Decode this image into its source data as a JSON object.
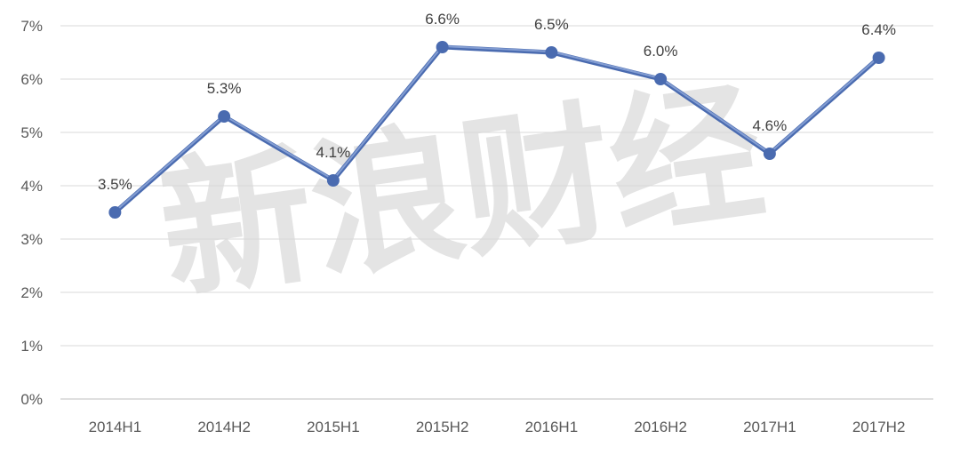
{
  "chart_data": {
    "type": "line",
    "title": "",
    "xlabel": "",
    "ylabel": "",
    "categories": [
      "2014H1",
      "2014H2",
      "2015H1",
      "2015H2",
      "2016H1",
      "2016H2",
      "2017H1",
      "2017H2"
    ],
    "series": [
      {
        "values": [
          3.5,
          5.3,
          4.1,
          6.6,
          6.5,
          6.0,
          4.6,
          6.4
        ],
        "data_labels": [
          "3.5%",
          "5.3%",
          "4.1%",
          "6.6%",
          "6.5%",
          "6.0%",
          "4.6%",
          "6.4%"
        ],
        "color": "#4a6bb0"
      }
    ],
    "ylim": [
      0,
      7
    ],
    "y_ticks": [
      "0%",
      "1%",
      "2%",
      "3%",
      "4%",
      "5%",
      "6%",
      "7%"
    ],
    "grid": true,
    "legend": "none"
  },
  "watermark": {
    "text": "新浪财经"
  },
  "colors": {
    "line": "#4a6bb0",
    "line_highlight": "#8aa3d6",
    "marker": "#4a6bb0",
    "grid": "#d9d9d9"
  }
}
